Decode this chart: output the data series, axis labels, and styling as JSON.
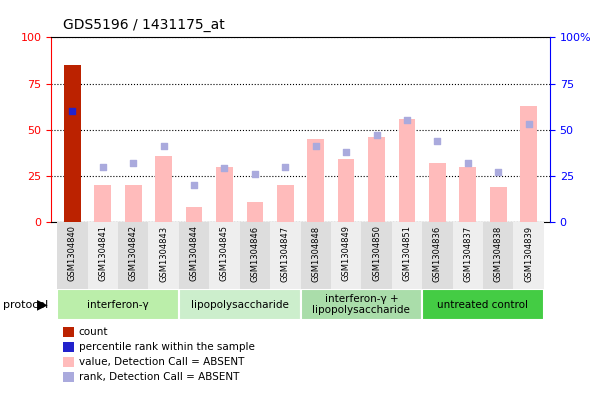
{
  "title": "GDS5196 / 1431175_at",
  "samples": [
    "GSM1304840",
    "GSM1304841",
    "GSM1304842",
    "GSM1304843",
    "GSM1304844",
    "GSM1304845",
    "GSM1304846",
    "GSM1304847",
    "GSM1304848",
    "GSM1304849",
    "GSM1304850",
    "GSM1304851",
    "GSM1304836",
    "GSM1304837",
    "GSM1304838",
    "GSM1304839"
  ],
  "bar_values": [
    85,
    20,
    20,
    36,
    8,
    30,
    11,
    20,
    45,
    34,
    46,
    56,
    32,
    30,
    19,
    63
  ],
  "dot_values": [
    60,
    30,
    32,
    41,
    20,
    29,
    26,
    30,
    41,
    38,
    47,
    55,
    44,
    32,
    27,
    53
  ],
  "bar_color_main": "#bb2200",
  "bar_color_absent": "#ffbbbb",
  "dot_color_rank": "#2222cc",
  "dot_color_absent": "#aaaadd",
  "groups": [
    {
      "label": "interferon-γ",
      "start": 0,
      "end": 4,
      "color": "#bbeeaa"
    },
    {
      "label": "lipopolysaccharide",
      "start": 4,
      "end": 8,
      "color": "#cceecc"
    },
    {
      "label": "interferon-γ +\nlipopolysaccharide",
      "start": 8,
      "end": 12,
      "color": "#aaddaa"
    },
    {
      "label": "untreated control",
      "start": 12,
      "end": 16,
      "color": "#44cc44"
    }
  ],
  "ylim": [
    0,
    100
  ],
  "yticks": [
    0,
    25,
    50,
    75,
    100
  ],
  "protocol_label": "protocol",
  "legend_items": [
    {
      "label": "count",
      "color": "#bb2200"
    },
    {
      "label": "percentile rank within the sample",
      "color": "#2222cc"
    },
    {
      "label": "value, Detection Call = ABSENT",
      "color": "#ffbbbb"
    },
    {
      "label": "rank, Detection Call = ABSENT",
      "color": "#aaaadd"
    }
  ]
}
